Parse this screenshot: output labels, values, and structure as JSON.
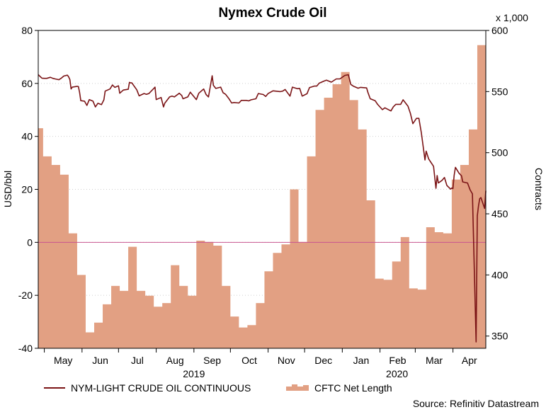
{
  "chart_data": {
    "type": "line+bar",
    "title": "Nymex Crude Oil",
    "left_axis": {
      "label": "USD/bbl",
      "range": [
        -40,
        80
      ],
      "ticks": [
        "80",
        "60",
        "40",
        "20",
        "0",
        "-20",
        "-40"
      ]
    },
    "right_axis": {
      "label": "Contracts",
      "multiplier": "x 1,000",
      "range": [
        340,
        600
      ],
      "ticks": [
        "600",
        "550",
        "500",
        "450",
        "400",
        "350"
      ]
    },
    "x_axis": {
      "start": "2019-04-26",
      "end": "2020-04-28",
      "month_labels": [
        "May",
        "Jun",
        "Jul",
        "Aug",
        "Sep",
        "Oct",
        "Nov",
        "Dec",
        "Jan",
        "Feb",
        "Mar",
        "Apr"
      ],
      "month_starts": [
        "2019-05-01",
        "2019-06-01",
        "2019-07-01",
        "2019-08-01",
        "2019-09-01",
        "2019-10-01",
        "2019-11-01",
        "2019-12-01",
        "2020-01-01",
        "2020-02-01",
        "2020-03-01",
        "2020-04-01"
      ],
      "year_labels": [
        {
          "text": "2019",
          "at": "2019-09-01"
        },
        {
          "text": "2020",
          "at": "2020-02-15"
        }
      ]
    },
    "zero_line": 0,
    "series": [
      {
        "name": "NYM-LIGHT CRUDE OIL CONTINUOUS",
        "axis": "left",
        "kind": "line",
        "color": "#7b1416",
        "points": [
          [
            "2019-04-26",
            63.3
          ],
          [
            "2019-04-29",
            62.0
          ],
          [
            "2019-05-01",
            61.9
          ],
          [
            "2019-05-03",
            61.9
          ],
          [
            "2019-05-06",
            62.3
          ],
          [
            "2019-05-08",
            61.9
          ],
          [
            "2019-05-10",
            61.7
          ],
          [
            "2019-05-13",
            61.4
          ],
          [
            "2019-05-15",
            62.0
          ],
          [
            "2019-05-17",
            62.8
          ],
          [
            "2019-05-20",
            63.1
          ],
          [
            "2019-05-21",
            62.5
          ],
          [
            "2019-05-22",
            61.4
          ],
          [
            "2019-05-23",
            57.9
          ],
          [
            "2019-05-24",
            58.6
          ],
          [
            "2019-05-28",
            58.9
          ],
          [
            "2019-05-29",
            58.8
          ],
          [
            "2019-05-30",
            56.6
          ],
          [
            "2019-05-31",
            53.5
          ],
          [
            "2019-06-03",
            53.3
          ],
          [
            "2019-06-05",
            51.7
          ],
          [
            "2019-06-07",
            53.9
          ],
          [
            "2019-06-10",
            53.3
          ],
          [
            "2019-06-12",
            51.1
          ],
          [
            "2019-06-14",
            52.5
          ],
          [
            "2019-06-17",
            52.0
          ],
          [
            "2019-06-19",
            53.8
          ],
          [
            "2019-06-20",
            57.1
          ],
          [
            "2019-06-24",
            57.9
          ],
          [
            "2019-06-26",
            59.4
          ],
          [
            "2019-06-28",
            58.5
          ],
          [
            "2019-07-01",
            59.1
          ],
          [
            "2019-07-02",
            56.3
          ],
          [
            "2019-07-05",
            57.5
          ],
          [
            "2019-07-09",
            57.8
          ],
          [
            "2019-07-10",
            60.4
          ],
          [
            "2019-07-11",
            60.2
          ],
          [
            "2019-07-12",
            60.2
          ],
          [
            "2019-07-16",
            57.6
          ],
          [
            "2019-07-18",
            55.3
          ],
          [
            "2019-07-22",
            56.2
          ],
          [
            "2019-07-24",
            55.9
          ],
          [
            "2019-07-26",
            56.2
          ],
          [
            "2019-07-30",
            58.1
          ],
          [
            "2019-07-31",
            58.6
          ],
          [
            "2019-08-01",
            53.9
          ],
          [
            "2019-08-05",
            54.7
          ],
          [
            "2019-08-07",
            51.1
          ],
          [
            "2019-08-08",
            52.5
          ],
          [
            "2019-08-12",
            54.9
          ],
          [
            "2019-08-14",
            55.2
          ],
          [
            "2019-08-16",
            54.9
          ],
          [
            "2019-08-20",
            56.3
          ],
          [
            "2019-08-22",
            55.4
          ],
          [
            "2019-08-23",
            54.2
          ],
          [
            "2019-08-27",
            54.9
          ],
          [
            "2019-08-29",
            56.7
          ],
          [
            "2019-09-03",
            53.9
          ],
          [
            "2019-09-05",
            56.3
          ],
          [
            "2019-09-09",
            57.9
          ],
          [
            "2019-09-11",
            55.8
          ],
          [
            "2019-09-13",
            54.9
          ],
          [
            "2019-09-16",
            62.9
          ],
          [
            "2019-09-17",
            59.3
          ],
          [
            "2019-09-19",
            58.1
          ],
          [
            "2019-09-23",
            58.6
          ],
          [
            "2019-09-25",
            56.5
          ],
          [
            "2019-09-27",
            55.9
          ],
          [
            "2019-09-30",
            54.1
          ],
          [
            "2019-10-02",
            52.6
          ],
          [
            "2019-10-04",
            52.8
          ],
          [
            "2019-10-08",
            52.6
          ],
          [
            "2019-10-10",
            53.6
          ],
          [
            "2019-10-14",
            53.6
          ],
          [
            "2019-10-16",
            53.4
          ],
          [
            "2019-10-18",
            53.8
          ],
          [
            "2019-10-22",
            54.2
          ],
          [
            "2019-10-24",
            56.2
          ],
          [
            "2019-10-28",
            55.8
          ],
          [
            "2019-10-30",
            55.1
          ],
          [
            "2019-11-01",
            56.2
          ],
          [
            "2019-11-05",
            57.2
          ],
          [
            "2019-11-07",
            57.1
          ],
          [
            "2019-11-11",
            56.9
          ],
          [
            "2019-11-13",
            57.1
          ],
          [
            "2019-11-15",
            57.7
          ],
          [
            "2019-11-19",
            55.2
          ],
          [
            "2019-11-21",
            58.6
          ],
          [
            "2019-11-25",
            58.0
          ],
          [
            "2019-11-27",
            58.1
          ],
          [
            "2019-11-29",
            55.2
          ],
          [
            "2019-12-03",
            56.1
          ],
          [
            "2019-12-05",
            58.4
          ],
          [
            "2019-12-09",
            59.0
          ],
          [
            "2019-12-11",
            59.0
          ],
          [
            "2019-12-13",
            60.1
          ],
          [
            "2019-12-17",
            60.9
          ],
          [
            "2019-12-19",
            61.2
          ],
          [
            "2019-12-23",
            60.5
          ],
          [
            "2019-12-27",
            61.7
          ],
          [
            "2019-12-30",
            61.7
          ],
          [
            "2020-01-03",
            63.0
          ],
          [
            "2020-01-06",
            63.3
          ],
          [
            "2020-01-08",
            59.6
          ],
          [
            "2020-01-10",
            59.0
          ],
          [
            "2020-01-14",
            58.2
          ],
          [
            "2020-01-16",
            58.5
          ],
          [
            "2020-01-21",
            58.3
          ],
          [
            "2020-01-22",
            56.7
          ],
          [
            "2020-01-24",
            54.2
          ],
          [
            "2020-01-28",
            53.5
          ],
          [
            "2020-01-30",
            52.1
          ],
          [
            "2020-02-03",
            50.1
          ],
          [
            "2020-02-05",
            50.8
          ],
          [
            "2020-02-07",
            50.3
          ],
          [
            "2020-02-10",
            49.6
          ],
          [
            "2020-02-12",
            51.2
          ],
          [
            "2020-02-14",
            52.1
          ],
          [
            "2020-02-18",
            52.1
          ],
          [
            "2020-02-20",
            53.8
          ],
          [
            "2020-02-24",
            51.4
          ],
          [
            "2020-02-26",
            48.7
          ],
          [
            "2020-02-28",
            44.8
          ],
          [
            "2020-03-02",
            46.8
          ],
          [
            "2020-03-04",
            46.8
          ],
          [
            "2020-03-06",
            41.3
          ],
          [
            "2020-03-09",
            31.1
          ],
          [
            "2020-03-10",
            34.4
          ],
          [
            "2020-03-12",
            31.5
          ],
          [
            "2020-03-16",
            28.7
          ],
          [
            "2020-03-18",
            20.4
          ],
          [
            "2020-03-19",
            25.2
          ],
          [
            "2020-03-20",
            22.4
          ],
          [
            "2020-03-23",
            23.4
          ],
          [
            "2020-03-25",
            24.5
          ],
          [
            "2020-03-27",
            21.5
          ],
          [
            "2020-03-30",
            20.1
          ],
          [
            "2020-03-31",
            20.5
          ],
          [
            "2020-04-01",
            20.3
          ],
          [
            "2020-04-02",
            25.3
          ],
          [
            "2020-04-03",
            28.3
          ],
          [
            "2020-04-06",
            26.1
          ],
          [
            "2020-04-08",
            25.1
          ],
          [
            "2020-04-09",
            22.8
          ],
          [
            "2020-04-13",
            22.4
          ],
          [
            "2020-04-15",
            19.9
          ],
          [
            "2020-04-17",
            18.3
          ],
          [
            "2020-04-20",
            -37.6
          ],
          [
            "2020-04-21",
            10.0
          ],
          [
            "2020-04-22",
            13.8
          ],
          [
            "2020-04-23",
            16.5
          ],
          [
            "2020-04-24",
            16.9
          ],
          [
            "2020-04-27",
            12.8
          ],
          [
            "2020-04-28",
            19.5
          ]
        ]
      },
      {
        "name": "CFTC Net Length",
        "axis": "right",
        "kind": "step-area",
        "color": "#e2a083",
        "weeks": [
          [
            "2019-04-23",
            520
          ],
          [
            "2019-04-30",
            497
          ],
          [
            "2019-05-07",
            490
          ],
          [
            "2019-05-14",
            482
          ],
          [
            "2019-05-21",
            434
          ],
          [
            "2019-05-28",
            400
          ],
          [
            "2019-06-04",
            353
          ],
          [
            "2019-06-11",
            361
          ],
          [
            "2019-06-18",
            376
          ],
          [
            "2019-06-25",
            391
          ],
          [
            "2019-07-02",
            387
          ],
          [
            "2019-07-09",
            423
          ],
          [
            "2019-07-16",
            387
          ],
          [
            "2019-07-23",
            383
          ],
          [
            "2019-07-30",
            374
          ],
          [
            "2019-08-06",
            377
          ],
          [
            "2019-08-13",
            408
          ],
          [
            "2019-08-20",
            391
          ],
          [
            "2019-08-27",
            383
          ],
          [
            "2019-09-03",
            428
          ],
          [
            "2019-09-10",
            427
          ],
          [
            "2019-09-17",
            424
          ],
          [
            "2019-09-24",
            391
          ],
          [
            "2019-10-01",
            366
          ],
          [
            "2019-10-08",
            357
          ],
          [
            "2019-10-15",
            359
          ],
          [
            "2019-10-22",
            377
          ],
          [
            "2019-10-29",
            403
          ],
          [
            "2019-11-05",
            418
          ],
          [
            "2019-11-12",
            425
          ],
          [
            "2019-11-19",
            470
          ],
          [
            "2019-11-26",
            427
          ],
          [
            "2019-12-03",
            497
          ],
          [
            "2019-12-10",
            535
          ],
          [
            "2019-12-17",
            545
          ],
          [
            "2019-12-24",
            556
          ],
          [
            "2019-12-31",
            566
          ],
          [
            "2020-01-07",
            543
          ],
          [
            "2020-01-14",
            519
          ],
          [
            "2020-01-21",
            461
          ],
          [
            "2020-01-28",
            397
          ],
          [
            "2020-02-04",
            396
          ],
          [
            "2020-02-11",
            411
          ],
          [
            "2020-02-18",
            431
          ],
          [
            "2020-02-25",
            389
          ],
          [
            "2020-03-03",
            388
          ],
          [
            "2020-03-10",
            439
          ],
          [
            "2020-03-17",
            435
          ],
          [
            "2020-03-24",
            434
          ],
          [
            "2020-03-31",
            478
          ],
          [
            "2020-04-07",
            490
          ],
          [
            "2020-04-14",
            519
          ],
          [
            "2020-04-21",
            588
          ],
          [
            "2020-04-28",
            589
          ]
        ]
      }
    ],
    "legend": {
      "placement": "bottom",
      "entries": [
        "NYM-LIGHT CRUDE OIL CONTINUOUS",
        "CFTC Net Length"
      ]
    },
    "source": "Source: Refinitiv Datastream",
    "grid": "dotted horizontal"
  }
}
